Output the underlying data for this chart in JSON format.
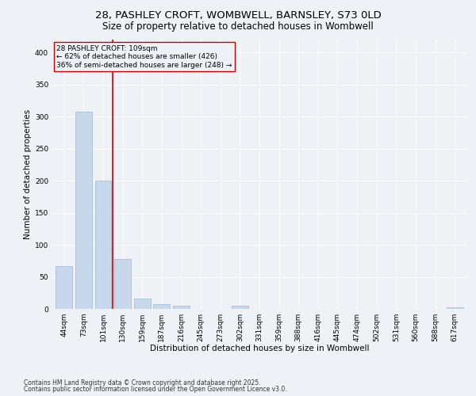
{
  "title_line1": "28, PASHLEY CROFT, WOMBWELL, BARNSLEY, S73 0LD",
  "title_line2": "Size of property relative to detached houses in Wombwell",
  "xlabel": "Distribution of detached houses by size in Wombwell",
  "ylabel": "Number of detached properties",
  "categories": [
    "44sqm",
    "73sqm",
    "101sqm",
    "130sqm",
    "159sqm",
    "187sqm",
    "216sqm",
    "245sqm",
    "273sqm",
    "302sqm",
    "331sqm",
    "359sqm",
    "388sqm",
    "416sqm",
    "445sqm",
    "474sqm",
    "502sqm",
    "531sqm",
    "560sqm",
    "588sqm",
    "617sqm"
  ],
  "values": [
    67,
    307,
    200,
    78,
    16,
    8,
    5,
    0,
    0,
    5,
    0,
    0,
    0,
    0,
    0,
    0,
    0,
    0,
    0,
    0,
    3
  ],
  "bar_color": "#c8d8ec",
  "bar_edge_color": "#a0b8d0",
  "vline_x_index": 2.5,
  "vline_color": "#cc0000",
  "annotation_text": "28 PASHLEY CROFT: 109sqm\n← 62% of detached houses are smaller (426)\n36% of semi-detached houses are larger (248) →",
  "annotation_box_color": "#cc0000",
  "ylim": [
    0,
    420
  ],
  "yticks": [
    0,
    50,
    100,
    150,
    200,
    250,
    300,
    350,
    400
  ],
  "background_color": "#eef2f7",
  "grid_color": "#ffffff",
  "footer_line1": "Contains HM Land Registry data © Crown copyright and database right 2025.",
  "footer_line2": "Contains public sector information licensed under the Open Government Licence v3.0.",
  "title_fontsize": 9.5,
  "subtitle_fontsize": 8.5,
  "axis_label_fontsize": 7.5,
  "tick_fontsize": 6.5,
  "annotation_fontsize": 6.5,
  "footer_fontsize": 5.5
}
